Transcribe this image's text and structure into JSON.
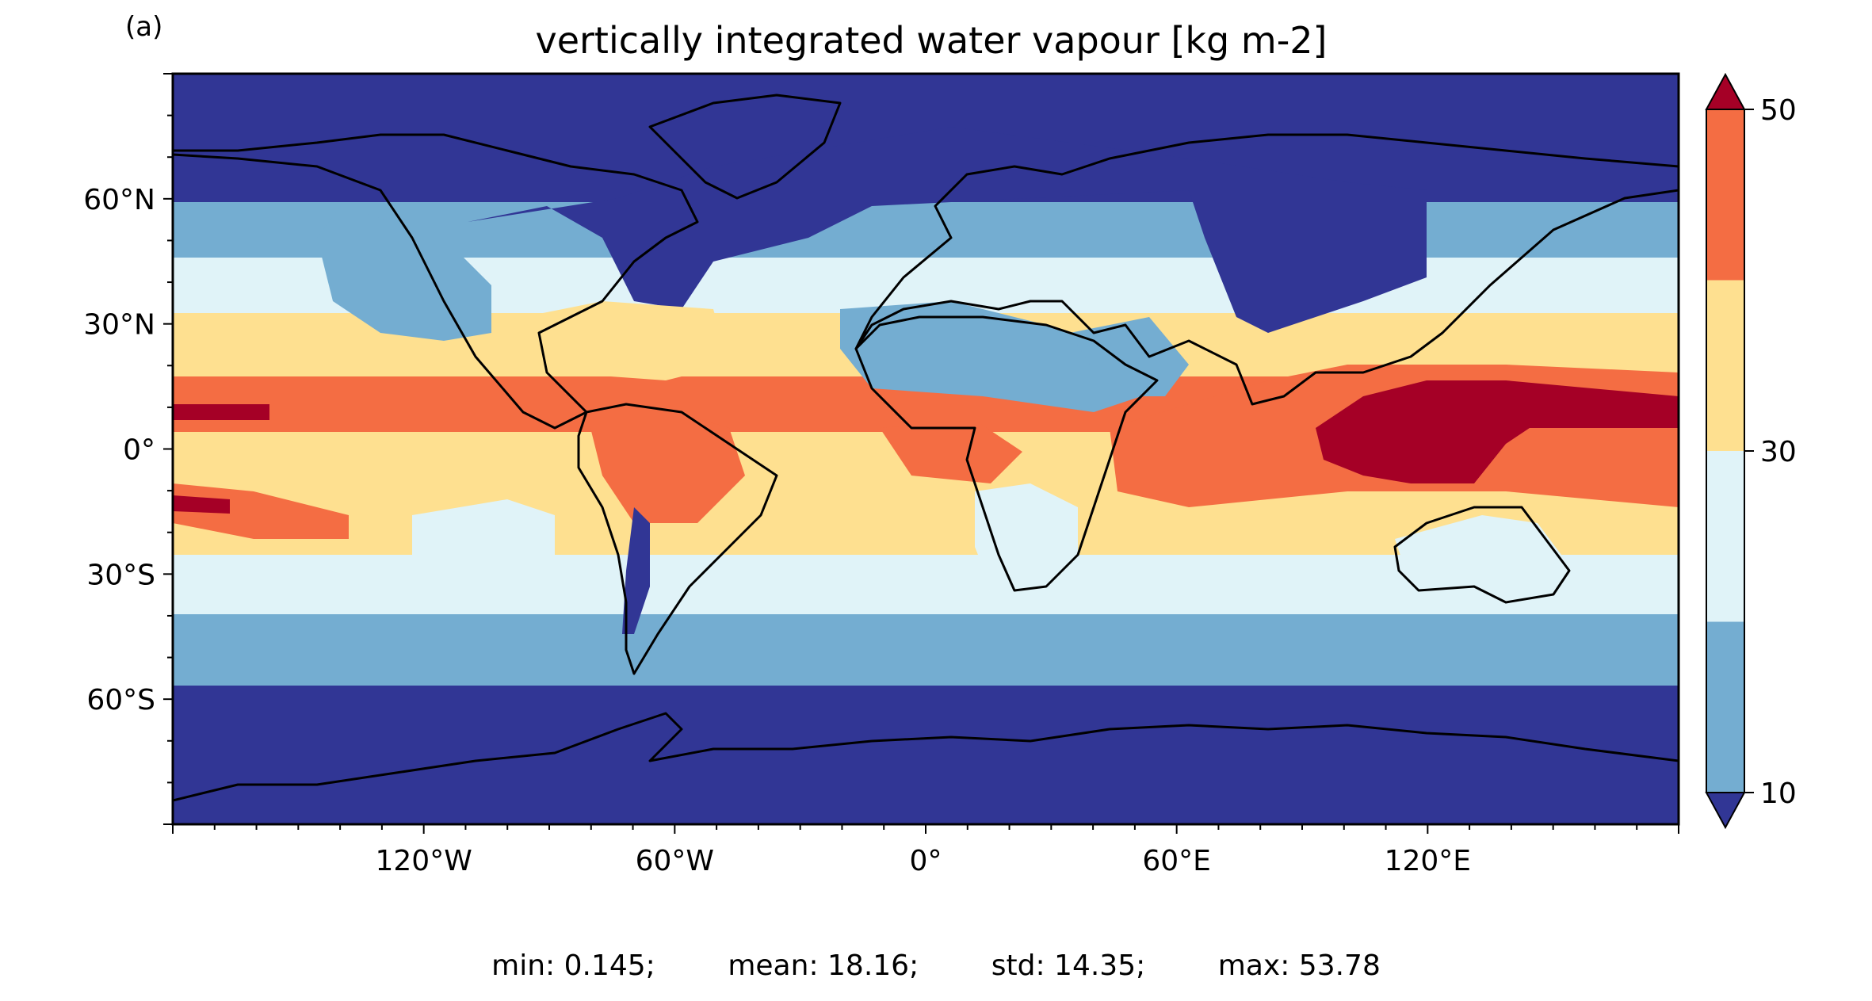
{
  "panel_label": "(a)",
  "title": "vertically integrated water vapour [kg m-2]",
  "stats": {
    "min_label": "min: 0.145;",
    "mean_label": "mean: 18.16;",
    "std_label": "std: 14.35;",
    "max_label": "max: 53.78"
  },
  "axes": {
    "lon_range": [
      -180,
      180
    ],
    "lat_range": [
      -90,
      90
    ],
    "x_ticks": [
      {
        "value": -120,
        "label": "120°W"
      },
      {
        "value": -60,
        "label": "60°W"
      },
      {
        "value": 0,
        "label": "0°"
      },
      {
        "value": 60,
        "label": "60°E"
      },
      {
        "value": 120,
        "label": "120°E"
      }
    ],
    "y_ticks": [
      {
        "value": 60,
        "label": "60°N"
      },
      {
        "value": 30,
        "label": "30°N"
      },
      {
        "value": 0,
        "label": "0°"
      },
      {
        "value": -30,
        "label": "30°S"
      },
      {
        "value": -60,
        "label": "60°S"
      }
    ]
  },
  "colorbar": {
    "levels": [
      10,
      30,
      50
    ],
    "tick_labels": [
      "10",
      "30",
      "50"
    ],
    "bands": [
      {
        "from": 10,
        "to": 20,
        "color": "#74add1"
      },
      {
        "from": 20,
        "to": 30,
        "color": "#e0f3f8"
      },
      {
        "from": 30,
        "to": 40,
        "color": "#fee090"
      },
      {
        "from": 40,
        "to": 50,
        "color": "#f46d43"
      }
    ],
    "under_color": "#313695",
    "over_color": "#a50026",
    "extend": "both"
  },
  "colors": {
    "band_lt10": "#313695",
    "band_10_20": "#74add1",
    "band_20_30": "#e0f3f8",
    "band_30_40": "#fee090",
    "band_40_50": "#f46d43",
    "band_gt50": "#a50026",
    "coastline": "#000000"
  }
}
